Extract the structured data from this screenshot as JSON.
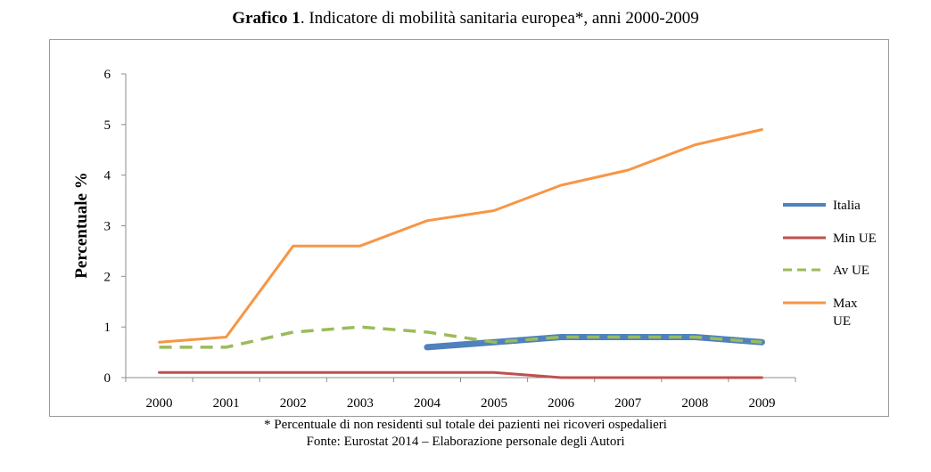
{
  "chart_data": {
    "type": "line",
    "title_bold": "Grafico 1",
    "title_rest": ". Indicatore di mobilità sanitaria europea*, anni 2000-2009",
    "ylabel": "Percentuale %",
    "xlabel": "",
    "ylim": [
      0,
      6
    ],
    "yticks": [
      "0",
      "1",
      "2",
      "3",
      "4",
      "5",
      "6"
    ],
    "categories": [
      "2000",
      "2001",
      "2002",
      "2003",
      "2004",
      "2005",
      "2006",
      "2007",
      "2008",
      "2009"
    ],
    "series": [
      {
        "name": "Italia",
        "color": "#4f81bd",
        "style": "solid-thick",
        "values": [
          null,
          null,
          null,
          null,
          0.6,
          0.7,
          0.8,
          0.8,
          0.8,
          0.7
        ]
      },
      {
        "name": "Min UE",
        "color": "#c0504d",
        "style": "solid",
        "values": [
          0.1,
          0.1,
          0.1,
          0.1,
          0.1,
          0.1,
          0.0,
          0.0,
          0.0,
          0.0
        ]
      },
      {
        "name": "Av UE",
        "color": "#9bbb59",
        "style": "dashed",
        "values": [
          0.6,
          0.6,
          0.9,
          1.0,
          0.9,
          0.7,
          0.8,
          0.8,
          0.8,
          0.7
        ]
      },
      {
        "name": "Max UE",
        "name_lines": [
          "Max",
          "UE"
        ],
        "color": "#f79646",
        "style": "solid",
        "values": [
          0.7,
          0.8,
          2.6,
          2.6,
          3.1,
          3.3,
          3.8,
          4.1,
          4.6,
          4.9
        ]
      }
    ],
    "legend_position": "right"
  },
  "footnote": "* Percentuale di non residenti sul totale dei pazienti nei ricoveri ospedalieri",
  "source": "Fonte: Eurostat 2014 – Elaborazione personale degli Autori"
}
